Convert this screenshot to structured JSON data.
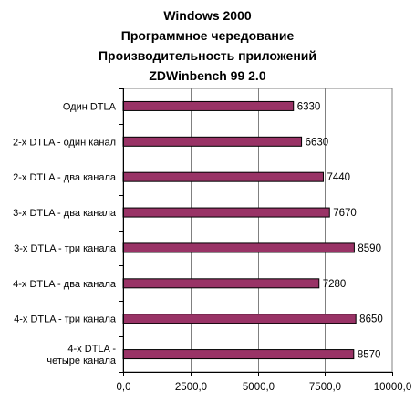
{
  "chart_data": {
    "type": "bar",
    "orientation": "horizontal",
    "title": [
      "Windows 2000",
      "Программное чередование",
      "Производительность приложений",
      "ZDWinbench 99 2.0"
    ],
    "categories": [
      [
        "Один DTLA"
      ],
      [
        "2-х DTLA - один канал"
      ],
      [
        "2-х DTLA - два канала"
      ],
      [
        "3-х DTLA - два канала"
      ],
      [
        "3-х DTLA - три канала"
      ],
      [
        "4-х DTLA - два канала"
      ],
      [
        "4-х DTLA - три канала"
      ],
      [
        "4-х DTLA -",
        "четыре канала"
      ]
    ],
    "values": [
      6330,
      6630,
      7440,
      7670,
      8590,
      7280,
      8650,
      8570
    ],
    "value_labels": [
      "6330",
      "6630",
      "7440",
      "7670",
      "8590",
      "7280",
      "8650",
      "8570"
    ],
    "xlim": [
      0,
      10000
    ],
    "xticks": [
      0,
      2500,
      5000,
      7500,
      10000
    ],
    "xtick_labels": [
      "0,0",
      "2500,0",
      "5000,0",
      "7500,0",
      "10000,0"
    ],
    "grid": "vertical",
    "legend": "none",
    "bar_color": "#993366",
    "bar_stroke": "#000000"
  }
}
